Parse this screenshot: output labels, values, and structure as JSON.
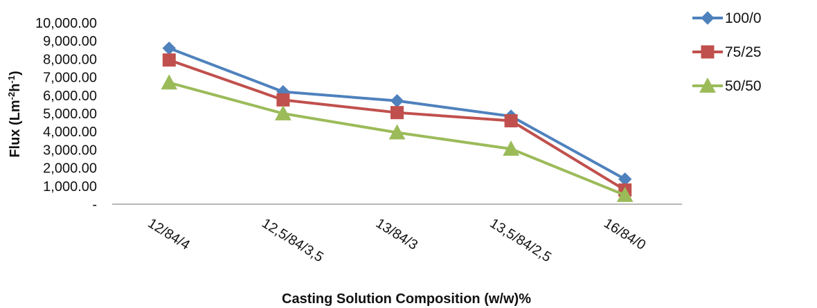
{
  "chart_data": {
    "type": "line",
    "categories": [
      "12/84/4",
      "12,5/84/3,5",
      "13/84/3",
      "13,5/84/2,5",
      "16/84/0"
    ],
    "series": [
      {
        "name": "100/0",
        "values": [
          8600,
          6200,
          5700,
          4850,
          1380
        ],
        "color": "#4F81BD",
        "marker": "diamond"
      },
      {
        "name": "75/25",
        "values": [
          7950,
          5750,
          5050,
          4600,
          780
        ],
        "color": "#C0504D",
        "marker": "square"
      },
      {
        "name": "50/50",
        "values": [
          6700,
          5000,
          3950,
          3050,
          500
        ],
        "color": "#9BBB59",
        "marker": "triangle"
      }
    ],
    "y_tick_labels": [
      "-",
      "1,000.00",
      "2,000.00",
      "3,000.00",
      "4,000.00",
      "5,000.00",
      "6,000.00",
      "7,000.00",
      "8,000.00",
      "9,000.00",
      "10,000.00"
    ],
    "ylabel": "Flux (Lm-2h-1)",
    "ylabel_parts": {
      "main": "Flux (Lm",
      "sup1": "-2",
      "mid": "h",
      "sup2": "-1",
      "end": ")"
    },
    "xlabel": "Casting Solution Composition (w/w)%",
    "ylim": [
      0,
      10000
    ],
    "grid": false,
    "legend_position": "top-right"
  }
}
